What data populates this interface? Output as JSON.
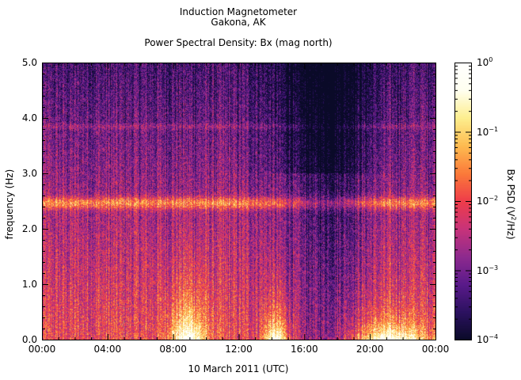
{
  "figure": {
    "title_line1": "Induction Magnetometer",
    "title_line2": "Gakona, AK",
    "title_line3": "Power Spectral Density: Bx (mag north)"
  },
  "chart_data": {
    "type": "heatmap",
    "title": "Power Spectral Density: Bx (mag north)",
    "xlabel": "10 March 2011 (UTC)",
    "ylabel": "frequency (Hz)",
    "x_ticks": [
      "00:00",
      "04:00",
      "08:00",
      "12:00",
      "16:00",
      "20:00",
      "00:00"
    ],
    "x_range_hours": [
      0,
      24
    ],
    "y_ticks": [
      "0.0",
      "1.0",
      "2.0",
      "3.0",
      "4.0",
      "5.0"
    ],
    "ylim": [
      0,
      5
    ],
    "colorbar": {
      "label_prefix": "Bx PSD (V",
      "label_sup": "2",
      "label_suffix": "/Hz)",
      "scale": "log",
      "range": [
        0.0001,
        1
      ],
      "tick_base": "10",
      "tick_exponents": [
        "0",
        "−1",
        "−2",
        "−3",
        "−4"
      ],
      "colormap_stops": [
        "#0a0a28",
        "#2c1160",
        "#5a1a8a",
        "#8e2a8e",
        "#c8337a",
        "#ee3c4a",
        "#fb7a3a",
        "#fdbb50",
        "#fdee8e",
        "#fffff0",
        "#ffffff"
      ]
    },
    "features": [
      {
        "type": "band",
        "frequency_hz": 2.47,
        "note": "persistent narrow-band enhancement"
      },
      {
        "type": "band",
        "frequency_hz": 3.85,
        "note": "weaker narrow-band line"
      },
      {
        "type": "burst",
        "start_hour": 7.8,
        "end_hour": 10.0,
        "max_frequency_hz": 1.6
      },
      {
        "type": "burst",
        "start_hour": 13.5,
        "end_hour": 15.0,
        "max_frequency_hz": 1.1
      },
      {
        "type": "burst",
        "start_hour": 19.0,
        "end_hour": 23.5,
        "max_frequency_hz": 0.8
      }
    ]
  }
}
